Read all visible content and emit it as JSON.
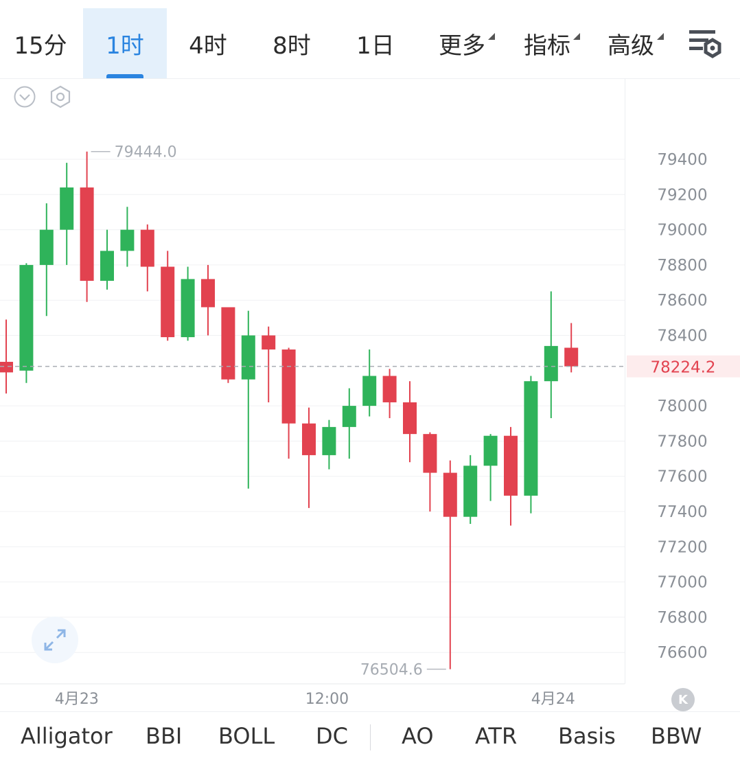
{
  "tabs": [
    {
      "label": "15分",
      "active": false,
      "dropdown": false
    },
    {
      "label": "1时",
      "active": true,
      "dropdown": false
    },
    {
      "label": "4时",
      "active": false,
      "dropdown": false
    },
    {
      "label": "8时",
      "active": false,
      "dropdown": false
    },
    {
      "label": "1日",
      "active": false,
      "dropdown": false
    },
    {
      "label": "更多",
      "active": false,
      "dropdown": true
    },
    {
      "label": "指标",
      "active": false,
      "dropdown": true
    },
    {
      "label": "高级",
      "active": false,
      "dropdown": true
    }
  ],
  "colors": {
    "up": "#2fb35a",
    "down": "#e2424f",
    "accent": "#2a84e0",
    "current_price": "#e2424f"
  },
  "chart_data": {
    "type": "candlestick",
    "ylim": [
      76450,
      79620
    ],
    "y_ticks": [
      79400,
      79200,
      79000,
      78800,
      78600,
      78400,
      78000,
      77800,
      77600,
      77400,
      77200,
      77000,
      76800,
      76600
    ],
    "x_ticks": [
      {
        "label": "4月23",
        "index": 3.5
      },
      {
        "label": "12:00",
        "index": 15.9
      },
      {
        "label": "4月24",
        "index": 27.1
      }
    ],
    "current_price": {
      "value": 78224.2,
      "label": "78224.2"
    },
    "max_marker": {
      "value": 79444.0,
      "label": "79444.0",
      "index": 4
    },
    "min_marker": {
      "value": 76504.6,
      "label": "76504.6",
      "index": 22
    },
    "candles": [
      {
        "o": 78250,
        "h": 78490,
        "l": 78070,
        "c": 78190
      },
      {
        "o": 78200,
        "h": 78810,
        "l": 78130,
        "c": 78800
      },
      {
        "o": 78800,
        "h": 79150,
        "l": 78510,
        "c": 79000
      },
      {
        "o": 79000,
        "h": 79380,
        "l": 78800,
        "c": 79240
      },
      {
        "o": 79240,
        "h": 79444,
        "l": 78590,
        "c": 78710
      },
      {
        "o": 78710,
        "h": 79000,
        "l": 78660,
        "c": 78880
      },
      {
        "o": 78880,
        "h": 79130,
        "l": 78790,
        "c": 79000
      },
      {
        "o": 79000,
        "h": 79030,
        "l": 78650,
        "c": 78790
      },
      {
        "o": 78790,
        "h": 78880,
        "l": 78370,
        "c": 78390
      },
      {
        "o": 78390,
        "h": 78790,
        "l": 78370,
        "c": 78720
      },
      {
        "o": 78720,
        "h": 78800,
        "l": 78400,
        "c": 78560
      },
      {
        "o": 78560,
        "h": 78560,
        "l": 78130,
        "c": 78150
      },
      {
        "o": 78150,
        "h": 78540,
        "l": 77530,
        "c": 78400
      },
      {
        "o": 78400,
        "h": 78450,
        "l": 78020,
        "c": 78320
      },
      {
        "o": 78320,
        "h": 78330,
        "l": 77700,
        "c": 77900
      },
      {
        "o": 77900,
        "h": 77990,
        "l": 77420,
        "c": 77720
      },
      {
        "o": 77720,
        "h": 77920,
        "l": 77640,
        "c": 77880
      },
      {
        "o": 77880,
        "h": 78100,
        "l": 77700,
        "c": 78000
      },
      {
        "o": 78000,
        "h": 78320,
        "l": 77940,
        "c": 78170
      },
      {
        "o": 78170,
        "h": 78210,
        "l": 77930,
        "c": 78020
      },
      {
        "o": 78020,
        "h": 78140,
        "l": 77680,
        "c": 77840
      },
      {
        "o": 77840,
        "h": 77850,
        "l": 77400,
        "c": 77620
      },
      {
        "o": 77620,
        "h": 77690,
        "l": 76504.6,
        "c": 77370
      },
      {
        "o": 77370,
        "h": 77720,
        "l": 77330,
        "c": 77660
      },
      {
        "o": 77660,
        "h": 77840,
        "l": 77460,
        "c": 77830
      },
      {
        "o": 77830,
        "h": 77880,
        "l": 77320,
        "c": 77490
      },
      {
        "o": 77490,
        "h": 78170,
        "l": 77390,
        "c": 78140
      },
      {
        "o": 78140,
        "h": 78650,
        "l": 77930,
        "c": 78340
      },
      {
        "o": 78330,
        "h": 78470,
        "l": 78190,
        "c": 78224.2
      }
    ]
  },
  "indicators": [
    "Alligator",
    "BBI",
    "BOLL",
    "DC",
    "AO",
    "ATR",
    "Basis",
    "BBW"
  ],
  "k_button": "K"
}
